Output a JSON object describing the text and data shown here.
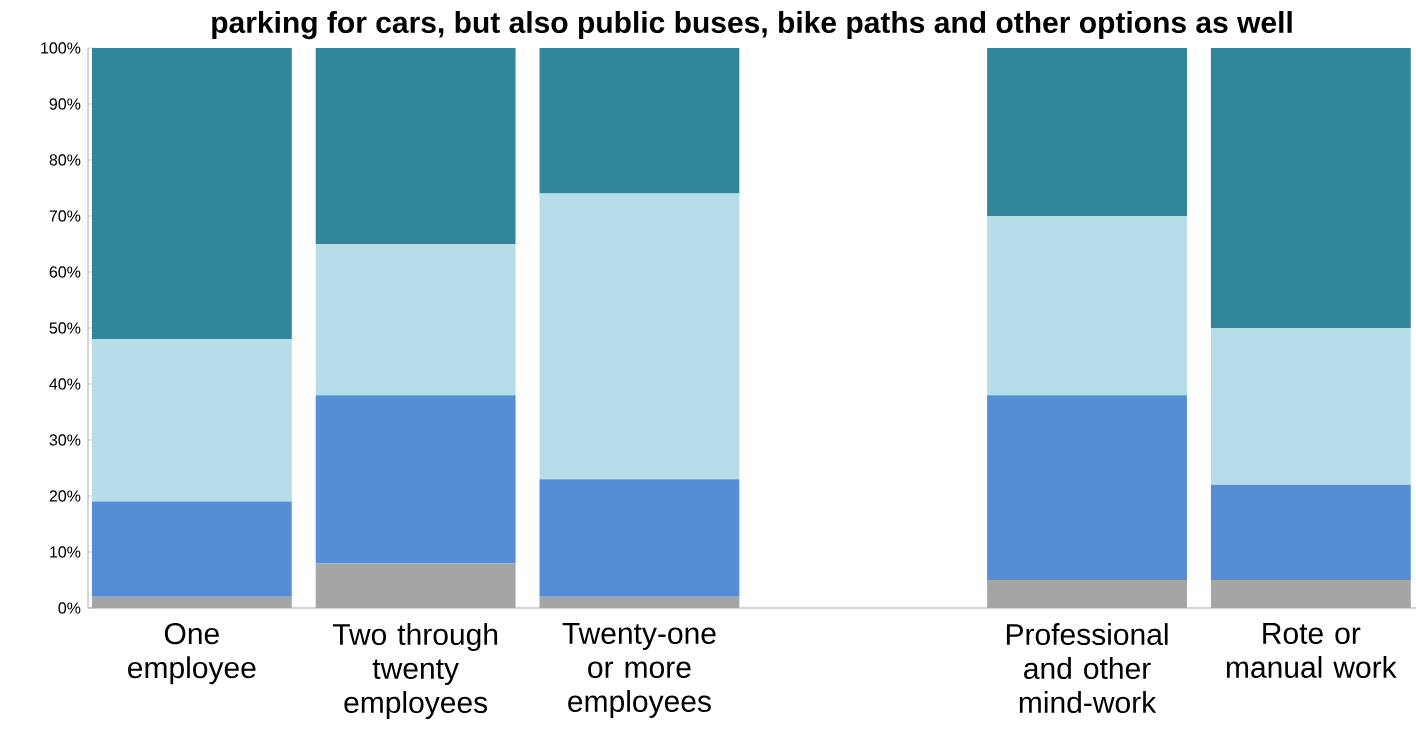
{
  "chart_data": {
    "type": "bar",
    "stacked": true,
    "title": "parking for cars, but also public buses, bike paths and other options as well",
    "categories": [
      "One employee",
      "Two through twenty employees",
      "Twenty-one or more employees",
      null,
      "Professional and other mind-work",
      "Rote or manual work"
    ],
    "series": [
      {
        "color": "#a5a5a5",
        "values": [
          2,
          8,
          2,
          null,
          5,
          5
        ]
      },
      {
        "color": "#558ed5",
        "values": [
          17,
          30,
          21,
          null,
          33,
          17
        ]
      },
      {
        "color": "#b7dde8",
        "values": [
          29,
          27,
          51,
          null,
          32,
          28
        ]
      },
      {
        "color": "#31869b",
        "values": [
          52,
          35,
          26,
          null,
          30,
          50
        ]
      }
    ],
    "ylim": [
      0,
      100
    ],
    "yticks": [
      {
        "value": 0,
        "label": "0%"
      },
      {
        "value": 10,
        "label": "10%"
      },
      {
        "value": 20,
        "label": "20%"
      },
      {
        "value": 30,
        "label": "30%"
      },
      {
        "value": 40,
        "label": "40%"
      },
      {
        "value": 50,
        "label": "50%"
      },
      {
        "value": 60,
        "label": "60%"
      },
      {
        "value": 70,
        "label": "70%"
      },
      {
        "value": 80,
        "label": "80%"
      },
      {
        "value": 90,
        "label": "90%"
      },
      {
        "value": 100,
        "label": "100%"
      }
    ],
    "grid": false
  }
}
